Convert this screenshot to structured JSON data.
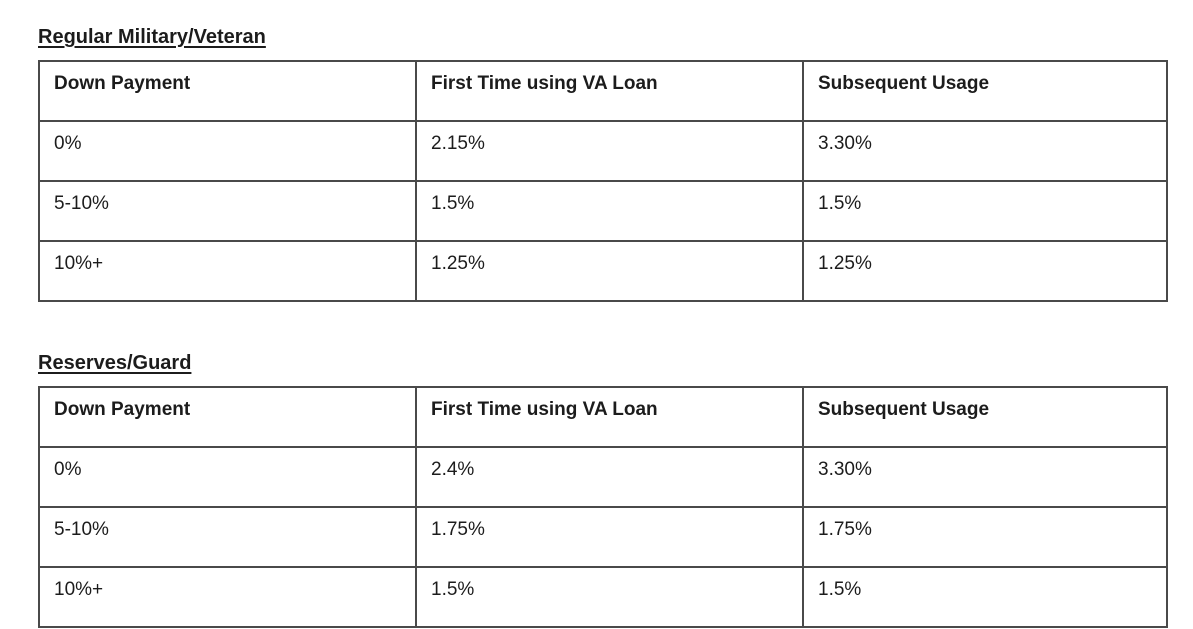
{
  "page": {
    "background_color": "#ffffff",
    "text_color": "#1c1c1c",
    "table_border_color": "#4a4a4a"
  },
  "tables": [
    {
      "title": "Regular Military/Veteran",
      "headers": [
        "Down Payment",
        "First Time using VA Loan",
        "Subsequent Usage"
      ],
      "rows": [
        [
          "0%",
          "2.15%",
          "3.30%"
        ],
        [
          "5-10%",
          "1.5%",
          "1.5%"
        ],
        [
          "10%+",
          "1.25%",
          "1.25%"
        ]
      ]
    },
    {
      "title": "Reserves/Guard",
      "headers": [
        "Down Payment",
        "First Time using VA Loan",
        "Subsequent Usage"
      ],
      "rows": [
        [
          "0%",
          "2.4%",
          "3.30%"
        ],
        [
          "5-10%",
          "1.75%",
          "1.75%"
        ],
        [
          "10%+",
          "1.5%",
          "1.5%"
        ]
      ]
    }
  ]
}
